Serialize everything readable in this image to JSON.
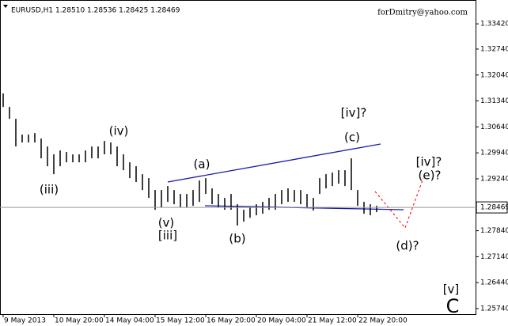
{
  "chart_data": {
    "type": "price-bars",
    "title": "EURUSD,H1 1.28510 1.28536 1.28425 1.28469",
    "watermark": "forDmitry@yahoo.com",
    "color": "#000000",
    "grid": false,
    "last_price": 1.28469,
    "xlim": [
      -0.5,
      74.5
    ],
    "xticks": [
      {
        "value": 0,
        "label": "9 May 2013"
      },
      {
        "value": 8,
        "label": "10 May 20:00"
      },
      {
        "value": 16,
        "label": "14 May 04:00"
      },
      {
        "value": 24,
        "label": "15 May 12:00"
      },
      {
        "value": 32,
        "label": "16 May 20:00"
      },
      {
        "value": 40,
        "label": "20 May 04:00"
      },
      {
        "value": 48,
        "label": "21 May 12:00"
      },
      {
        "value": 56,
        "label": "22 May 20:00"
      }
    ],
    "ylim": [
      1.2559,
      1.3402
    ],
    "yticks": [
      {
        "value": 1.3342,
        "label": "1.33420"
      },
      {
        "value": 1.3274,
        "label": "1.32740"
      },
      {
        "value": 1.3204,
        "label": "1.32040"
      },
      {
        "value": 1.3134,
        "label": "1.31340"
      },
      {
        "value": 1.3064,
        "label": "1.30640"
      },
      {
        "value": 1.2994,
        "label": "1.29940"
      },
      {
        "value": 1.2924,
        "label": "1.29240"
      },
      {
        "value": 1.2784,
        "label": "1.27840"
      },
      {
        "value": 1.2714,
        "label": "1.27140"
      },
      {
        "value": 1.2644,
        "label": "1.26440"
      },
      {
        "value": 1.2574,
        "label": "1.25740"
      }
    ],
    "high": [
      1.31542,
      1.31179,
      1.30859,
      1.30432,
      1.30432,
      1.30475,
      1.30325,
      1.30112,
      1.29899,
      1.30005,
      1.29963,
      1.29899,
      1.29899,
      1.30005,
      1.30112,
      1.30112,
      1.30261,
      1.30219,
      1.30112,
      1.29899,
      1.29685,
      1.29579,
      1.29365,
      1.29258,
      1.28938,
      1.28938,
      1.29045,
      1.28938,
      1.28832,
      1.28832,
      1.28938,
      1.29194,
      1.29258,
      1.28981,
      1.28832,
      1.28725,
      1.28832,
      1.28554,
      1.28405,
      1.28469,
      1.28554,
      1.28618,
      1.28725,
      1.28832,
      1.28938,
      1.28981,
      1.28938,
      1.28938,
      1.28832,
      1.28725,
      1.29258,
      1.29365,
      1.29408,
      1.29472,
      1.29472,
      1.29792,
      1.28938,
      1.28618,
      1.28554,
      1.28512
    ],
    "low": [
      1.31179,
      1.30859,
      1.30112,
      1.30219,
      1.30219,
      1.30219,
      1.29792,
      1.29579,
      1.29365,
      1.29579,
      1.29685,
      1.29685,
      1.29685,
      1.29685,
      1.29792,
      1.29792,
      1.29899,
      1.29899,
      1.29579,
      1.29472,
      1.29258,
      1.29152,
      1.28938,
      1.28725,
      1.28405,
      1.28469,
      1.28618,
      1.28554,
      1.28469,
      1.28469,
      1.28512,
      1.28618,
      1.28832,
      1.28554,
      1.28469,
      1.28405,
      1.28405,
      1.27978,
      1.28085,
      1.28191,
      1.28256,
      1.28298,
      1.28405,
      1.28405,
      1.28554,
      1.28618,
      1.28618,
      1.28554,
      1.28469,
      1.28384,
      1.28832,
      1.28981,
      1.29045,
      1.29109,
      1.29045,
      1.28938,
      1.28512,
      1.28298,
      1.28256,
      1.28341
    ],
    "annotations": [
      "(iii)",
      "(iv)",
      "(v)",
      "[iii]",
      "(a)",
      "(b)",
      "(c)",
      "[iv]?",
      "[iv]?",
      "(e)?",
      "(d)?",
      "[v]",
      "C"
    ]
  }
}
